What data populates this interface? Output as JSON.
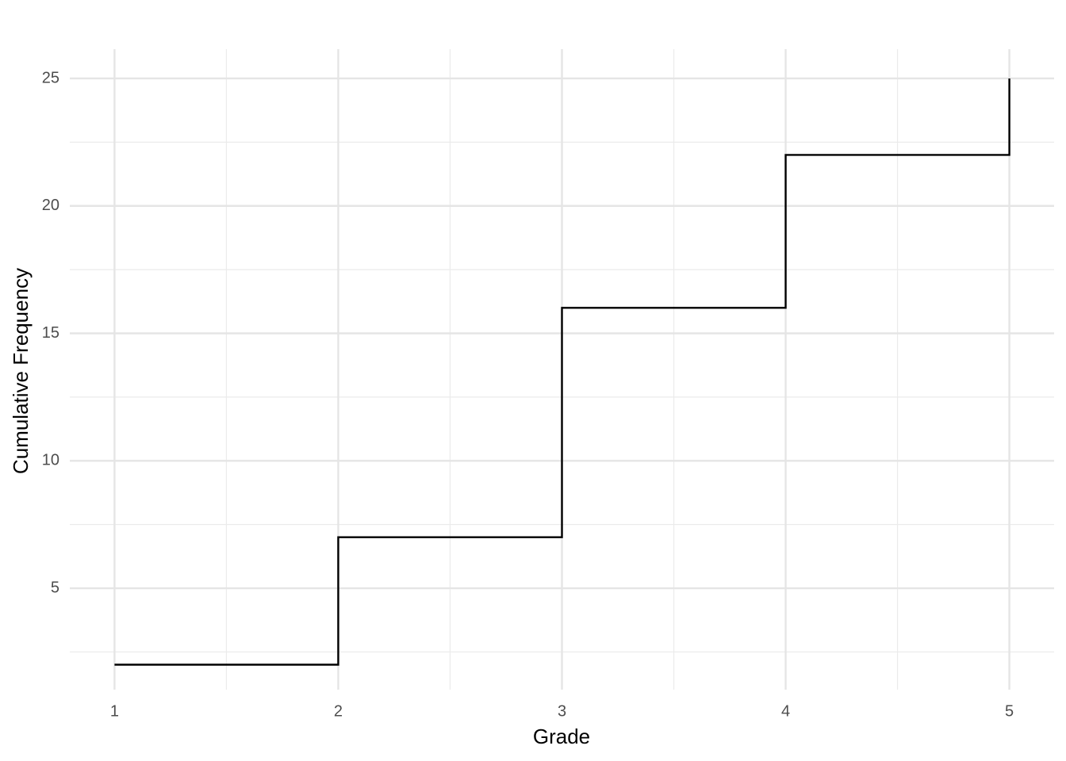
{
  "chart_data": {
    "type": "step",
    "x_label": "Grade",
    "y_label": "Cumulative Frequency",
    "x": [
      1,
      2,
      3,
      4,
      5
    ],
    "values": [
      2,
      7,
      16,
      22,
      25
    ],
    "color": "#000000",
    "xlim": [
      0.8,
      5.2
    ],
    "xticks": [
      1,
      2,
      3,
      4,
      5
    ],
    "ylim": [
      1.02,
      26.15
    ],
    "yticks": [
      5,
      10,
      15,
      20,
      25
    ],
    "grid": true
  }
}
